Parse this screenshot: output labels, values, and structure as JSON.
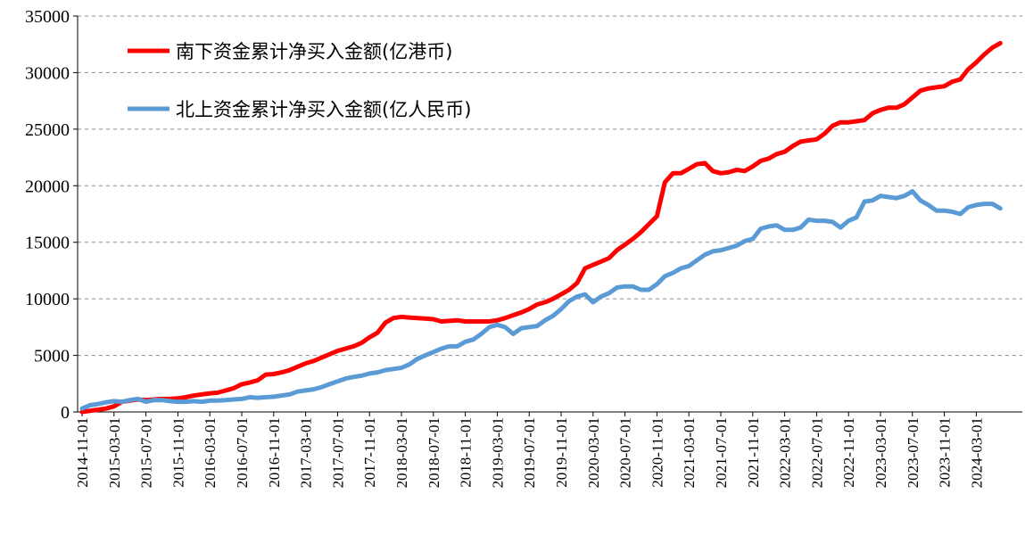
{
  "chart_data": {
    "type": "line",
    "title": "",
    "xlabel": "",
    "ylabel": "",
    "ylim": [
      0,
      35000
    ],
    "yticks": [
      "0",
      "5000",
      "10000",
      "15000",
      "20000",
      "25000",
      "30000",
      "35000"
    ],
    "x_tick_labels": [
      "2014-11-01",
      "2015-03-01",
      "2015-07-01",
      "2015-11-01",
      "2016-03-01",
      "2016-07-01",
      "2016-11-01",
      "2017-03-01",
      "2017-07-01",
      "2017-11-01",
      "2018-03-01",
      "2018-07-01",
      "2018-11-01",
      "2019-03-01",
      "2019-07-01",
      "2019-11-01",
      "2020-03-01",
      "2020-07-01",
      "2020-11-01",
      "2021-03-01",
      "2021-07-01",
      "2021-11-01",
      "2022-03-01",
      "2022-07-01",
      "2022-11-01",
      "2023-03-01",
      "2023-07-01",
      "2023-11-01",
      "2024-03-01"
    ],
    "grid": "horizontal-dashed",
    "legend_position": "top-left",
    "series": [
      {
        "name": "南下资金累计净买入金额(亿港币)",
        "color": "#ff0000",
        "points": [
          [
            "2014-11",
            0
          ],
          [
            "2014-12",
            100
          ],
          [
            "2015-01",
            200
          ],
          [
            "2015-02",
            300
          ],
          [
            "2015-03",
            500
          ],
          [
            "2015-04",
            900
          ],
          [
            "2015-05",
            1000
          ],
          [
            "2015-06",
            1100
          ],
          [
            "2015-07",
            1050
          ],
          [
            "2015-08",
            1100
          ],
          [
            "2015-09",
            1150
          ],
          [
            "2015-10",
            1150
          ],
          [
            "2015-11",
            1200
          ],
          [
            "2015-12",
            1300
          ],
          [
            "2016-01",
            1450
          ],
          [
            "2016-02",
            1550
          ],
          [
            "2016-03",
            1650
          ],
          [
            "2016-04",
            1700
          ],
          [
            "2016-05",
            1900
          ],
          [
            "2016-06",
            2100
          ],
          [
            "2016-07",
            2450
          ],
          [
            "2016-08",
            2600
          ],
          [
            "2016-09",
            2800
          ],
          [
            "2016-10",
            3300
          ],
          [
            "2016-11",
            3350
          ],
          [
            "2016-12",
            3500
          ],
          [
            "2017-01",
            3700
          ],
          [
            "2017-02",
            4000
          ],
          [
            "2017-03",
            4300
          ],
          [
            "2017-04",
            4500
          ],
          [
            "2017-05",
            4800
          ],
          [
            "2017-06",
            5100
          ],
          [
            "2017-07",
            5400
          ],
          [
            "2017-08",
            5600
          ],
          [
            "2017-09",
            5800
          ],
          [
            "2017-10",
            6100
          ],
          [
            "2017-11",
            6600
          ],
          [
            "2017-12",
            7000
          ],
          [
            "2018-01",
            7900
          ],
          [
            "2018-02",
            8300
          ],
          [
            "2018-03",
            8400
          ],
          [
            "2018-04",
            8350
          ],
          [
            "2018-05",
            8300
          ],
          [
            "2018-06",
            8250
          ],
          [
            "2018-07",
            8200
          ],
          [
            "2018-08",
            8000
          ],
          [
            "2018-09",
            8050
          ],
          [
            "2018-10",
            8100
          ],
          [
            "2018-11",
            8000
          ],
          [
            "2018-12",
            8000
          ],
          [
            "2019-01",
            8000
          ],
          [
            "2019-02",
            8000
          ],
          [
            "2019-03",
            8100
          ],
          [
            "2019-04",
            8300
          ],
          [
            "2019-05",
            8550
          ],
          [
            "2019-06",
            8800
          ],
          [
            "2019-07",
            9100
          ],
          [
            "2019-08",
            9500
          ],
          [
            "2019-09",
            9700
          ],
          [
            "2019-10",
            10000
          ],
          [
            "2019-11",
            10400
          ],
          [
            "2019-12",
            10800
          ],
          [
            "2020-01",
            11400
          ],
          [
            "2020-02",
            12700
          ],
          [
            "2020-03",
            13000
          ],
          [
            "2020-04",
            13300
          ],
          [
            "2020-05",
            13600
          ],
          [
            "2020-06",
            14300
          ],
          [
            "2020-07",
            14800
          ],
          [
            "2020-08",
            15300
          ],
          [
            "2020-09",
            15900
          ],
          [
            "2020-10",
            16600
          ],
          [
            "2020-11",
            17300
          ],
          [
            "2020-12",
            20300
          ],
          [
            "2021-01",
            21100
          ],
          [
            "2021-02",
            21100
          ],
          [
            "2021-03",
            21500
          ],
          [
            "2021-04",
            21900
          ],
          [
            "2021-05",
            22000
          ],
          [
            "2021-06",
            21300
          ],
          [
            "2021-07",
            21100
          ],
          [
            "2021-08",
            21200
          ],
          [
            "2021-09",
            21400
          ],
          [
            "2021-10",
            21300
          ],
          [
            "2021-11",
            21700
          ],
          [
            "2021-12",
            22200
          ],
          [
            "2022-01",
            22400
          ],
          [
            "2022-02",
            22800
          ],
          [
            "2022-03",
            23000
          ],
          [
            "2022-04",
            23500
          ],
          [
            "2022-05",
            23900
          ],
          [
            "2022-06",
            24000
          ],
          [
            "2022-07",
            24100
          ],
          [
            "2022-08",
            24600
          ],
          [
            "2022-09",
            25300
          ],
          [
            "2022-10",
            25600
          ],
          [
            "2022-11",
            25600
          ],
          [
            "2022-12",
            25700
          ],
          [
            "2023-01",
            25800
          ],
          [
            "2023-02",
            26400
          ],
          [
            "2023-03",
            26700
          ],
          [
            "2023-04",
            26900
          ],
          [
            "2023-05",
            26900
          ],
          [
            "2023-06",
            27200
          ],
          [
            "2023-07",
            27800
          ],
          [
            "2023-08",
            28400
          ],
          [
            "2023-09",
            28600
          ],
          [
            "2023-10",
            28700
          ],
          [
            "2023-11",
            28800
          ],
          [
            "2023-12",
            29200
          ],
          [
            "2024-01",
            29400
          ],
          [
            "2024-02",
            30300
          ],
          [
            "2024-03",
            30900
          ],
          [
            "2024-04",
            31600
          ],
          [
            "2024-05",
            32200
          ],
          [
            "2024-06",
            32600
          ]
        ]
      },
      {
        "name": "北上资金累计净买入金额(亿人民币)",
        "color": "#5b9bd5",
        "points": [
          [
            "2014-11",
            300
          ],
          [
            "2014-12",
            600
          ],
          [
            "2015-01",
            700
          ],
          [
            "2015-02",
            850
          ],
          [
            "2015-03",
            950
          ],
          [
            "2015-04",
            900
          ],
          [
            "2015-05",
            1050
          ],
          [
            "2015-06",
            1150
          ],
          [
            "2015-07",
            900
          ],
          [
            "2015-08",
            1050
          ],
          [
            "2015-09",
            1050
          ],
          [
            "2015-10",
            950
          ],
          [
            "2015-11",
            900
          ],
          [
            "2015-12",
            900
          ],
          [
            "2016-01",
            950
          ],
          [
            "2016-02",
            900
          ],
          [
            "2016-03",
            1000
          ],
          [
            "2016-04",
            1000
          ],
          [
            "2016-05",
            1050
          ],
          [
            "2016-06",
            1100
          ],
          [
            "2016-07",
            1150
          ],
          [
            "2016-08",
            1300
          ],
          [
            "2016-09",
            1250
          ],
          [
            "2016-10",
            1300
          ],
          [
            "2016-11",
            1350
          ],
          [
            "2016-12",
            1450
          ],
          [
            "2017-01",
            1550
          ],
          [
            "2017-02",
            1800
          ],
          [
            "2017-03",
            1900
          ],
          [
            "2017-04",
            2000
          ],
          [
            "2017-05",
            2200
          ],
          [
            "2017-06",
            2450
          ],
          [
            "2017-07",
            2700
          ],
          [
            "2017-08",
            2950
          ],
          [
            "2017-09",
            3100
          ],
          [
            "2017-10",
            3200
          ],
          [
            "2017-11",
            3400
          ],
          [
            "2017-12",
            3500
          ],
          [
            "2018-01",
            3700
          ],
          [
            "2018-02",
            3800
          ],
          [
            "2018-03",
            3900
          ],
          [
            "2018-04",
            4200
          ],
          [
            "2018-05",
            4700
          ],
          [
            "2018-06",
            5000
          ],
          [
            "2018-07",
            5300
          ],
          [
            "2018-08",
            5600
          ],
          [
            "2018-09",
            5800
          ],
          [
            "2018-10",
            5800
          ],
          [
            "2018-11",
            6200
          ],
          [
            "2018-12",
            6400
          ],
          [
            "2019-01",
            6900
          ],
          [
            "2019-02",
            7500
          ],
          [
            "2019-03",
            7700
          ],
          [
            "2019-04",
            7500
          ],
          [
            "2019-05",
            6900
          ],
          [
            "2019-06",
            7400
          ],
          [
            "2019-07",
            7500
          ],
          [
            "2019-08",
            7600
          ],
          [
            "2019-09",
            8100
          ],
          [
            "2019-10",
            8500
          ],
          [
            "2019-11",
            9100
          ],
          [
            "2019-12",
            9800
          ],
          [
            "2020-01",
            10200
          ],
          [
            "2020-02",
            10400
          ],
          [
            "2020-03",
            9700
          ],
          [
            "2020-04",
            10200
          ],
          [
            "2020-05",
            10500
          ],
          [
            "2020-06",
            11000
          ],
          [
            "2020-07",
            11100
          ],
          [
            "2020-08",
            11100
          ],
          [
            "2020-09",
            10800
          ],
          [
            "2020-10",
            10800
          ],
          [
            "2020-11",
            11300
          ],
          [
            "2020-12",
            12000
          ],
          [
            "2021-01",
            12300
          ],
          [
            "2021-02",
            12700
          ],
          [
            "2021-03",
            12900
          ],
          [
            "2021-04",
            13400
          ],
          [
            "2021-05",
            13900
          ],
          [
            "2021-06",
            14200
          ],
          [
            "2021-07",
            14300
          ],
          [
            "2021-08",
            14500
          ],
          [
            "2021-09",
            14700
          ],
          [
            "2021-10",
            15100
          ],
          [
            "2021-11",
            15300
          ],
          [
            "2021-12",
            16200
          ],
          [
            "2022-01",
            16400
          ],
          [
            "2022-02",
            16500
          ],
          [
            "2022-03",
            16100
          ],
          [
            "2022-04",
            16100
          ],
          [
            "2022-05",
            16300
          ],
          [
            "2022-06",
            17000
          ],
          [
            "2022-07",
            16900
          ],
          [
            "2022-08",
            16900
          ],
          [
            "2022-09",
            16800
          ],
          [
            "2022-10",
            16300
          ],
          [
            "2022-11",
            16900
          ],
          [
            "2022-12",
            17200
          ],
          [
            "2023-01",
            18600
          ],
          [
            "2023-02",
            18700
          ],
          [
            "2023-03",
            19100
          ],
          [
            "2023-04",
            19000
          ],
          [
            "2023-05",
            18900
          ],
          [
            "2023-06",
            19100
          ],
          [
            "2023-07",
            19500
          ],
          [
            "2023-08",
            18700
          ],
          [
            "2023-09",
            18300
          ],
          [
            "2023-10",
            17800
          ],
          [
            "2023-11",
            17800
          ],
          [
            "2023-12",
            17700
          ],
          [
            "2024-01",
            17500
          ],
          [
            "2024-02",
            18100
          ],
          [
            "2024-03",
            18300
          ],
          [
            "2024-04",
            18400
          ],
          [
            "2024-05",
            18400
          ],
          [
            "2024-06",
            18000
          ]
        ]
      }
    ]
  }
}
